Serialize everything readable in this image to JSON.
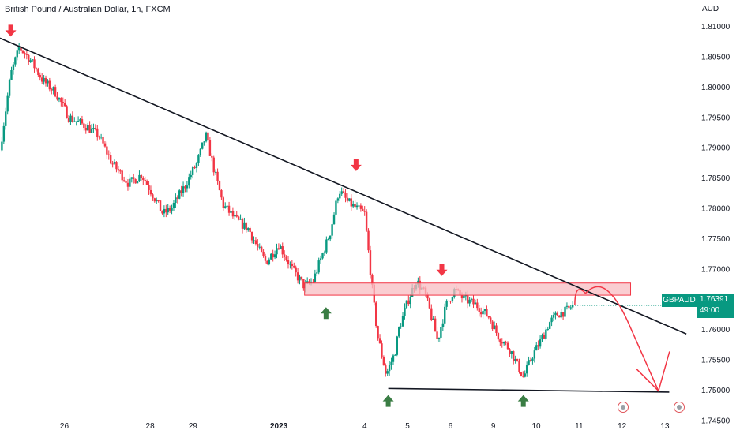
{
  "header": {
    "title": "British Pound / Australian Dollar, 1h, FXCM",
    "currency": "AUD"
  },
  "price_tag": {
    "symbol": "GBPAUD",
    "price": "1.76391",
    "countdown": "49:00"
  },
  "colors": {
    "up": "#089981",
    "down": "#f23645",
    "trendline": "#131722",
    "zone_fill": "#f8bcc2",
    "zone_border": "#f23645",
    "projection": "#f23645",
    "arrow_down": "#f23645",
    "arrow_up": "#3a7d44"
  },
  "chart_data": {
    "type": "candlestick",
    "y_axis": {
      "ticks": [
        "1.81000",
        "1.80500",
        "1.80000",
        "1.79500",
        "1.79000",
        "1.78500",
        "1.78000",
        "1.77500",
        "1.77000",
        "1.76500",
        "1.76000",
        "1.75500",
        "1.75000",
        "1.74500"
      ],
      "ylim": [
        1.744,
        1.813
      ],
      "unit": "AUD"
    },
    "x_axis": {
      "ticks": [
        {
          "label": "26",
          "x": 0.5
        },
        {
          "label": "28",
          "x": 2.5
        },
        {
          "label": "29",
          "x": 3.5
        },
        {
          "label": "2023",
          "x": 5.5,
          "bold": true
        },
        {
          "label": "4",
          "x": 7.5
        },
        {
          "label": "5",
          "x": 8.5
        },
        {
          "label": "6",
          "x": 9.5
        },
        {
          "label": "9",
          "x": 10.5
        },
        {
          "label": "10",
          "x": 11.5
        },
        {
          "label": "11",
          "x": 12.5
        },
        {
          "label": "12",
          "x": 13.5
        },
        {
          "label": "13",
          "x": 14.5
        }
      ],
      "xlim": [
        -1.0,
        15.2
      ]
    },
    "path": [
      [
        -1.0,
        1.7895
      ],
      [
        -0.75,
        1.802
      ],
      [
        -0.55,
        1.8065
      ],
      [
        -0.3,
        1.8045
      ],
      [
        0.0,
        1.801
      ],
      [
        0.3,
        1.799
      ],
      [
        0.6,
        1.795
      ],
      [
        1.0,
        1.7935
      ],
      [
        1.3,
        1.792
      ],
      [
        1.6,
        1.7875
      ],
      [
        2.0,
        1.784
      ],
      [
        2.3,
        1.7855
      ],
      [
        2.5,
        1.783
      ],
      [
        2.8,
        1.779
      ],
      [
        3.0,
        1.78
      ],
      [
        3.3,
        1.7835
      ],
      [
        3.6,
        1.7875
      ],
      [
        3.8,
        1.792
      ],
      [
        4.0,
        1.786
      ],
      [
        4.2,
        1.7805
      ],
      [
        4.5,
        1.778
      ],
      [
        4.8,
        1.7765
      ],
      [
        5.0,
        1.7735
      ],
      [
        5.2,
        1.771
      ],
      [
        5.5,
        1.774
      ],
      [
        5.8,
        1.77
      ],
      [
        6.1,
        1.767
      ],
      [
        6.3,
        1.768
      ],
      [
        6.5,
        1.772
      ],
      [
        6.7,
        1.776
      ],
      [
        6.9,
        1.783
      ],
      [
        7.1,
        1.781
      ],
      [
        7.3,
        1.78
      ],
      [
        7.5,
        1.779
      ],
      [
        7.6,
        1.772
      ],
      [
        7.7,
        1.765
      ],
      [
        7.8,
        1.759
      ],
      [
        8.0,
        1.7525
      ],
      [
        8.2,
        1.756
      ],
      [
        8.3,
        1.76
      ],
      [
        8.5,
        1.7645
      ],
      [
        8.7,
        1.768
      ],
      [
        8.9,
        1.766
      ],
      [
        9.1,
        1.761
      ],
      [
        9.2,
        1.758
      ],
      [
        9.4,
        1.764
      ],
      [
        9.6,
        1.7665
      ],
      [
        9.8,
        1.765
      ],
      [
        10.1,
        1.764
      ],
      [
        10.4,
        1.762
      ],
      [
        10.6,
        1.759
      ],
      [
        10.9,
        1.7565
      ],
      [
        11.2,
        1.752
      ],
      [
        11.4,
        1.7555
      ],
      [
        11.6,
        1.758
      ],
      [
        11.8,
        1.761
      ],
      [
        12.0,
        1.7625
      ],
      [
        12.2,
        1.763
      ],
      [
        12.35,
        1.7639
      ]
    ],
    "annotations": {
      "trendline": [
        [
          -1.0,
          1.808
        ],
        [
          15.0,
          1.7592
        ]
      ],
      "support_line": [
        [
          8.05,
          1.7502
        ],
        [
          14.6,
          1.7496
        ]
      ],
      "resistance_zone": {
        "x": [
          6.1,
          13.7
        ],
        "y": [
          1.7656,
          1.7676
        ]
      },
      "arrows_down": [
        [
          -0.75,
          1.8084
        ],
        [
          7.3,
          1.7862
        ],
        [
          9.3,
          1.7689
        ]
      ],
      "arrows_up": [
        [
          6.6,
          1.7635
        ],
        [
          8.05,
          1.749
        ],
        [
          11.2,
          1.749
        ]
      ],
      "projection": [
        [
          12.4,
          1.764
        ],
        [
          12.9,
          1.7678
        ],
        [
          13.4,
          1.765
        ],
        [
          13.9,
          1.757
        ],
        [
          14.35,
          1.7498
        ]
      ]
    }
  }
}
